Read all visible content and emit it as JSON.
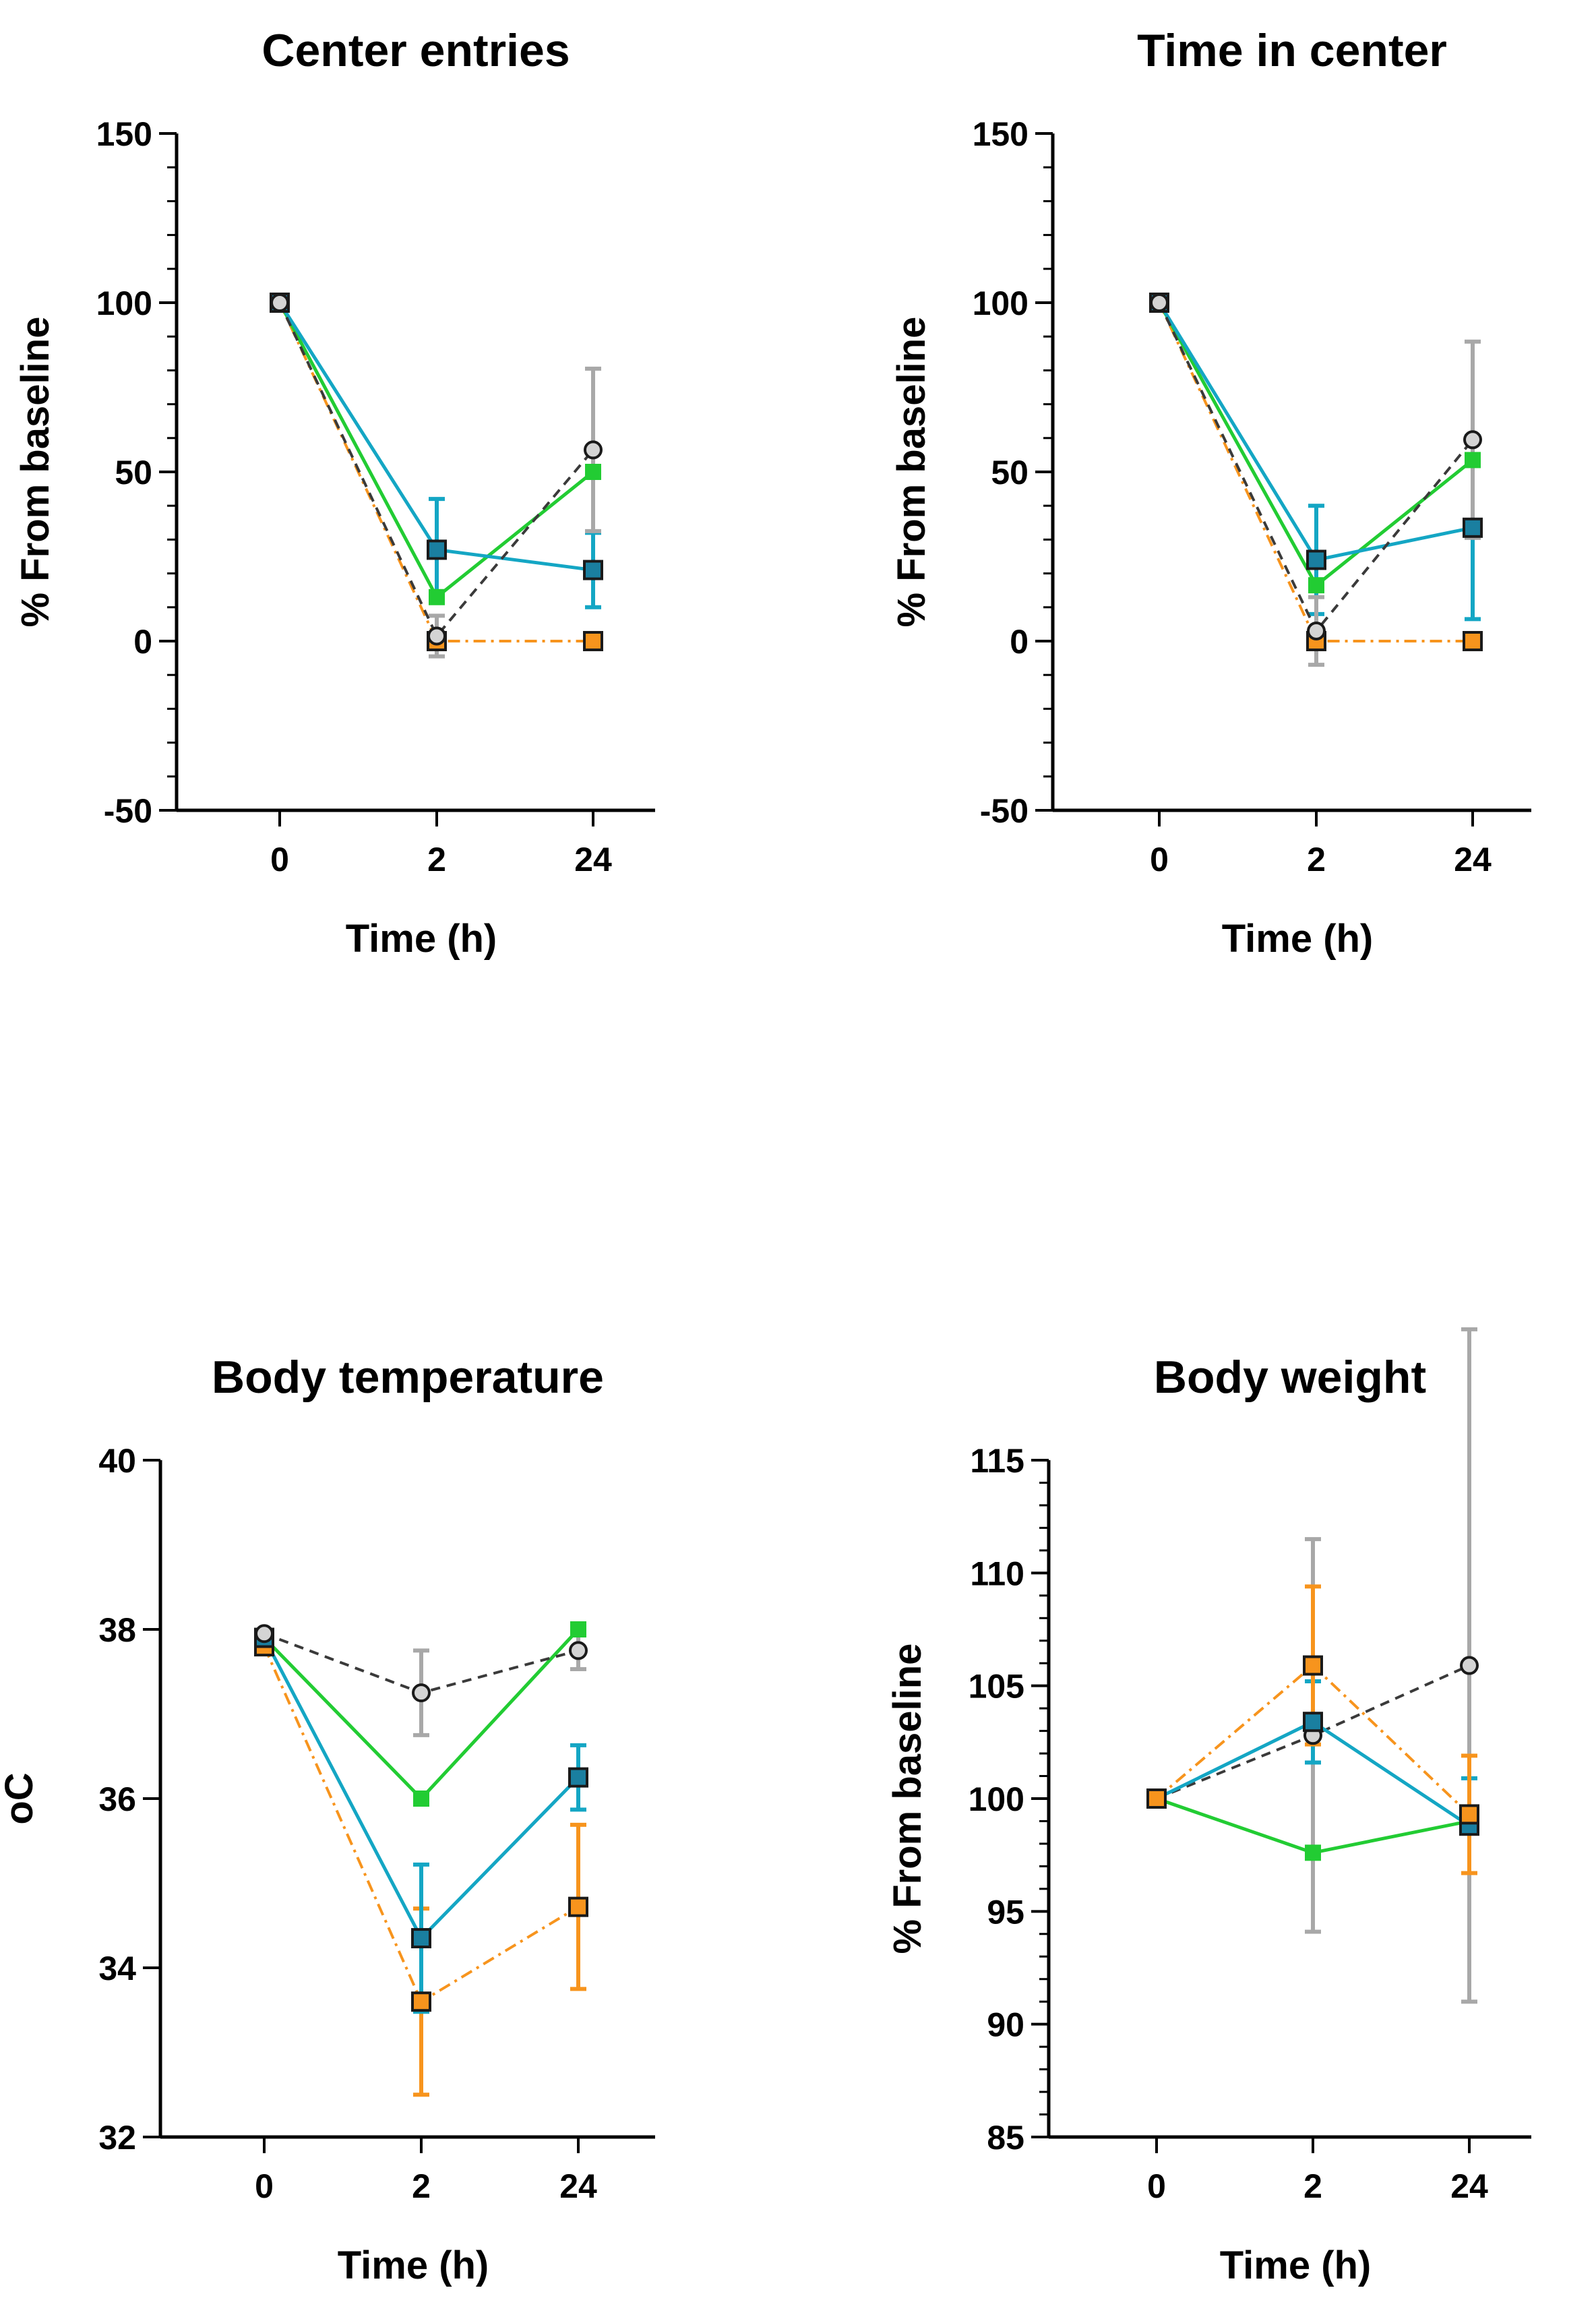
{
  "series_styles": [
    {
      "id": "gray",
      "color": "#3a3a3a",
      "errcolor": "#a8a8a8",
      "marker": "circle",
      "fill": "#d4d4d4",
      "dash": "14,10"
    },
    {
      "id": "orange",
      "color": "#f7941d",
      "errcolor": "#f7941d",
      "marker": "square",
      "fill": "#f7941d",
      "dash": "18,8,4,8"
    },
    {
      "id": "green",
      "color": "#22cc33",
      "errcolor": "#22cc33",
      "marker": "square-small",
      "fill": "#22cc33",
      "dash": ""
    },
    {
      "id": "teal",
      "color": "#14a6c4",
      "errcolor": "#14a6c4",
      "marker": "square",
      "fill": "#1a7fa0",
      "dash": ""
    }
  ],
  "chart_data": [
    {
      "type": "line",
      "title": "Center entries",
      "xlabel": "Time (h)",
      "ylabel": "% From baseline",
      "categories": [
        "0",
        "2",
        "24"
      ],
      "ylim": [
        -50,
        150
      ],
      "yticks": [
        -50,
        0,
        50,
        100,
        150
      ],
      "yticklabels": [
        "-50",
        "0",
        "50",
        "100",
        "150"
      ],
      "minor_step": 10,
      "series": [
        {
          "style": "orange",
          "values": [
            100,
            0,
            0
          ],
          "err": [
            0,
            0,
            0
          ]
        },
        {
          "style": "green",
          "values": [
            100,
            13,
            50
          ],
          "err": [
            0,
            0,
            0
          ]
        },
        {
          "style": "teal",
          "values": [
            100,
            27,
            21
          ],
          "err": [
            0,
            15,
            11
          ]
        },
        {
          "style": "gray",
          "values": [
            100,
            1.5,
            56.5
          ],
          "err": [
            0,
            6,
            24
          ]
        }
      ]
    },
    {
      "type": "line",
      "title": "Time in center",
      "xlabel": "Time (h)",
      "ylabel": "% From baseline",
      "categories": [
        "0",
        "2",
        "24"
      ],
      "ylim": [
        -50,
        150
      ],
      "yticks": [
        -50,
        0,
        50,
        100,
        150
      ],
      "yticklabels": [
        "-50",
        "0",
        "50",
        "100",
        "150"
      ],
      "minor_step": 10,
      "series": [
        {
          "style": "orange",
          "values": [
            100,
            0,
            0
          ],
          "err": [
            0,
            0,
            0
          ]
        },
        {
          "style": "green",
          "values": [
            100,
            16.5,
            53.5
          ],
          "err": [
            0,
            0,
            0
          ]
        },
        {
          "style": "teal",
          "values": [
            100,
            24,
            33.5
          ],
          "err": [
            0,
            16,
            27
          ]
        },
        {
          "style": "gray",
          "values": [
            100,
            3,
            59.5
          ],
          "err": [
            0,
            10,
            29
          ]
        }
      ]
    },
    {
      "type": "line",
      "title": "Body temperature",
      "xlabel": "Time (h)",
      "ylabel": "oC",
      "categories": [
        "0",
        "2",
        "24"
      ],
      "ylim": [
        32,
        40
      ],
      "yticks": [
        32,
        34,
        36,
        38,
        40
      ],
      "yticklabels": [
        "32",
        "34",
        "36",
        "38",
        "40"
      ],
      "minor_step": 0,
      "series": [
        {
          "style": "orange",
          "values": [
            37.8,
            33.6,
            34.72
          ],
          "err": [
            0.08,
            1.1,
            0.97
          ]
        },
        {
          "style": "green",
          "values": [
            37.9,
            36.0,
            38.0
          ],
          "err": [
            0,
            0,
            0.05
          ]
        },
        {
          "style": "teal",
          "values": [
            37.9,
            34.35,
            36.25
          ],
          "err": [
            0,
            0.87,
            0.38
          ]
        },
        {
          "style": "gray",
          "values": [
            37.95,
            37.25,
            37.75
          ],
          "err": [
            0,
            0.5,
            0.22
          ]
        }
      ]
    },
    {
      "type": "line",
      "title": "Body weight",
      "xlabel": "Time (h)",
      "ylabel": "% From baseline",
      "categories": [
        "0",
        "2",
        "24"
      ],
      "ylim": [
        85,
        115
      ],
      "yticks": [
        85,
        90,
        95,
        100,
        105,
        110,
        115
      ],
      "yticklabels": [
        "85",
        "90",
        "95",
        "100",
        "105",
        "110",
        "115"
      ],
      "minor_step": 1,
      "series": [
        {
          "style": "green",
          "values": [
            100,
            97.6,
            99.0
          ],
          "err": [
            0,
            0,
            0
          ]
        },
        {
          "style": "gray",
          "values": [
            100,
            102.8,
            105.9
          ],
          "err": [
            0,
            8.7,
            14.9
          ]
        },
        {
          "style": "teal",
          "values": [
            100,
            103.4,
            98.8
          ],
          "err": [
            0,
            1.8,
            2.1
          ]
        },
        {
          "style": "orange",
          "values": [
            100,
            105.9,
            99.3
          ],
          "err": [
            0,
            3.5,
            2.6
          ]
        }
      ]
    }
  ]
}
